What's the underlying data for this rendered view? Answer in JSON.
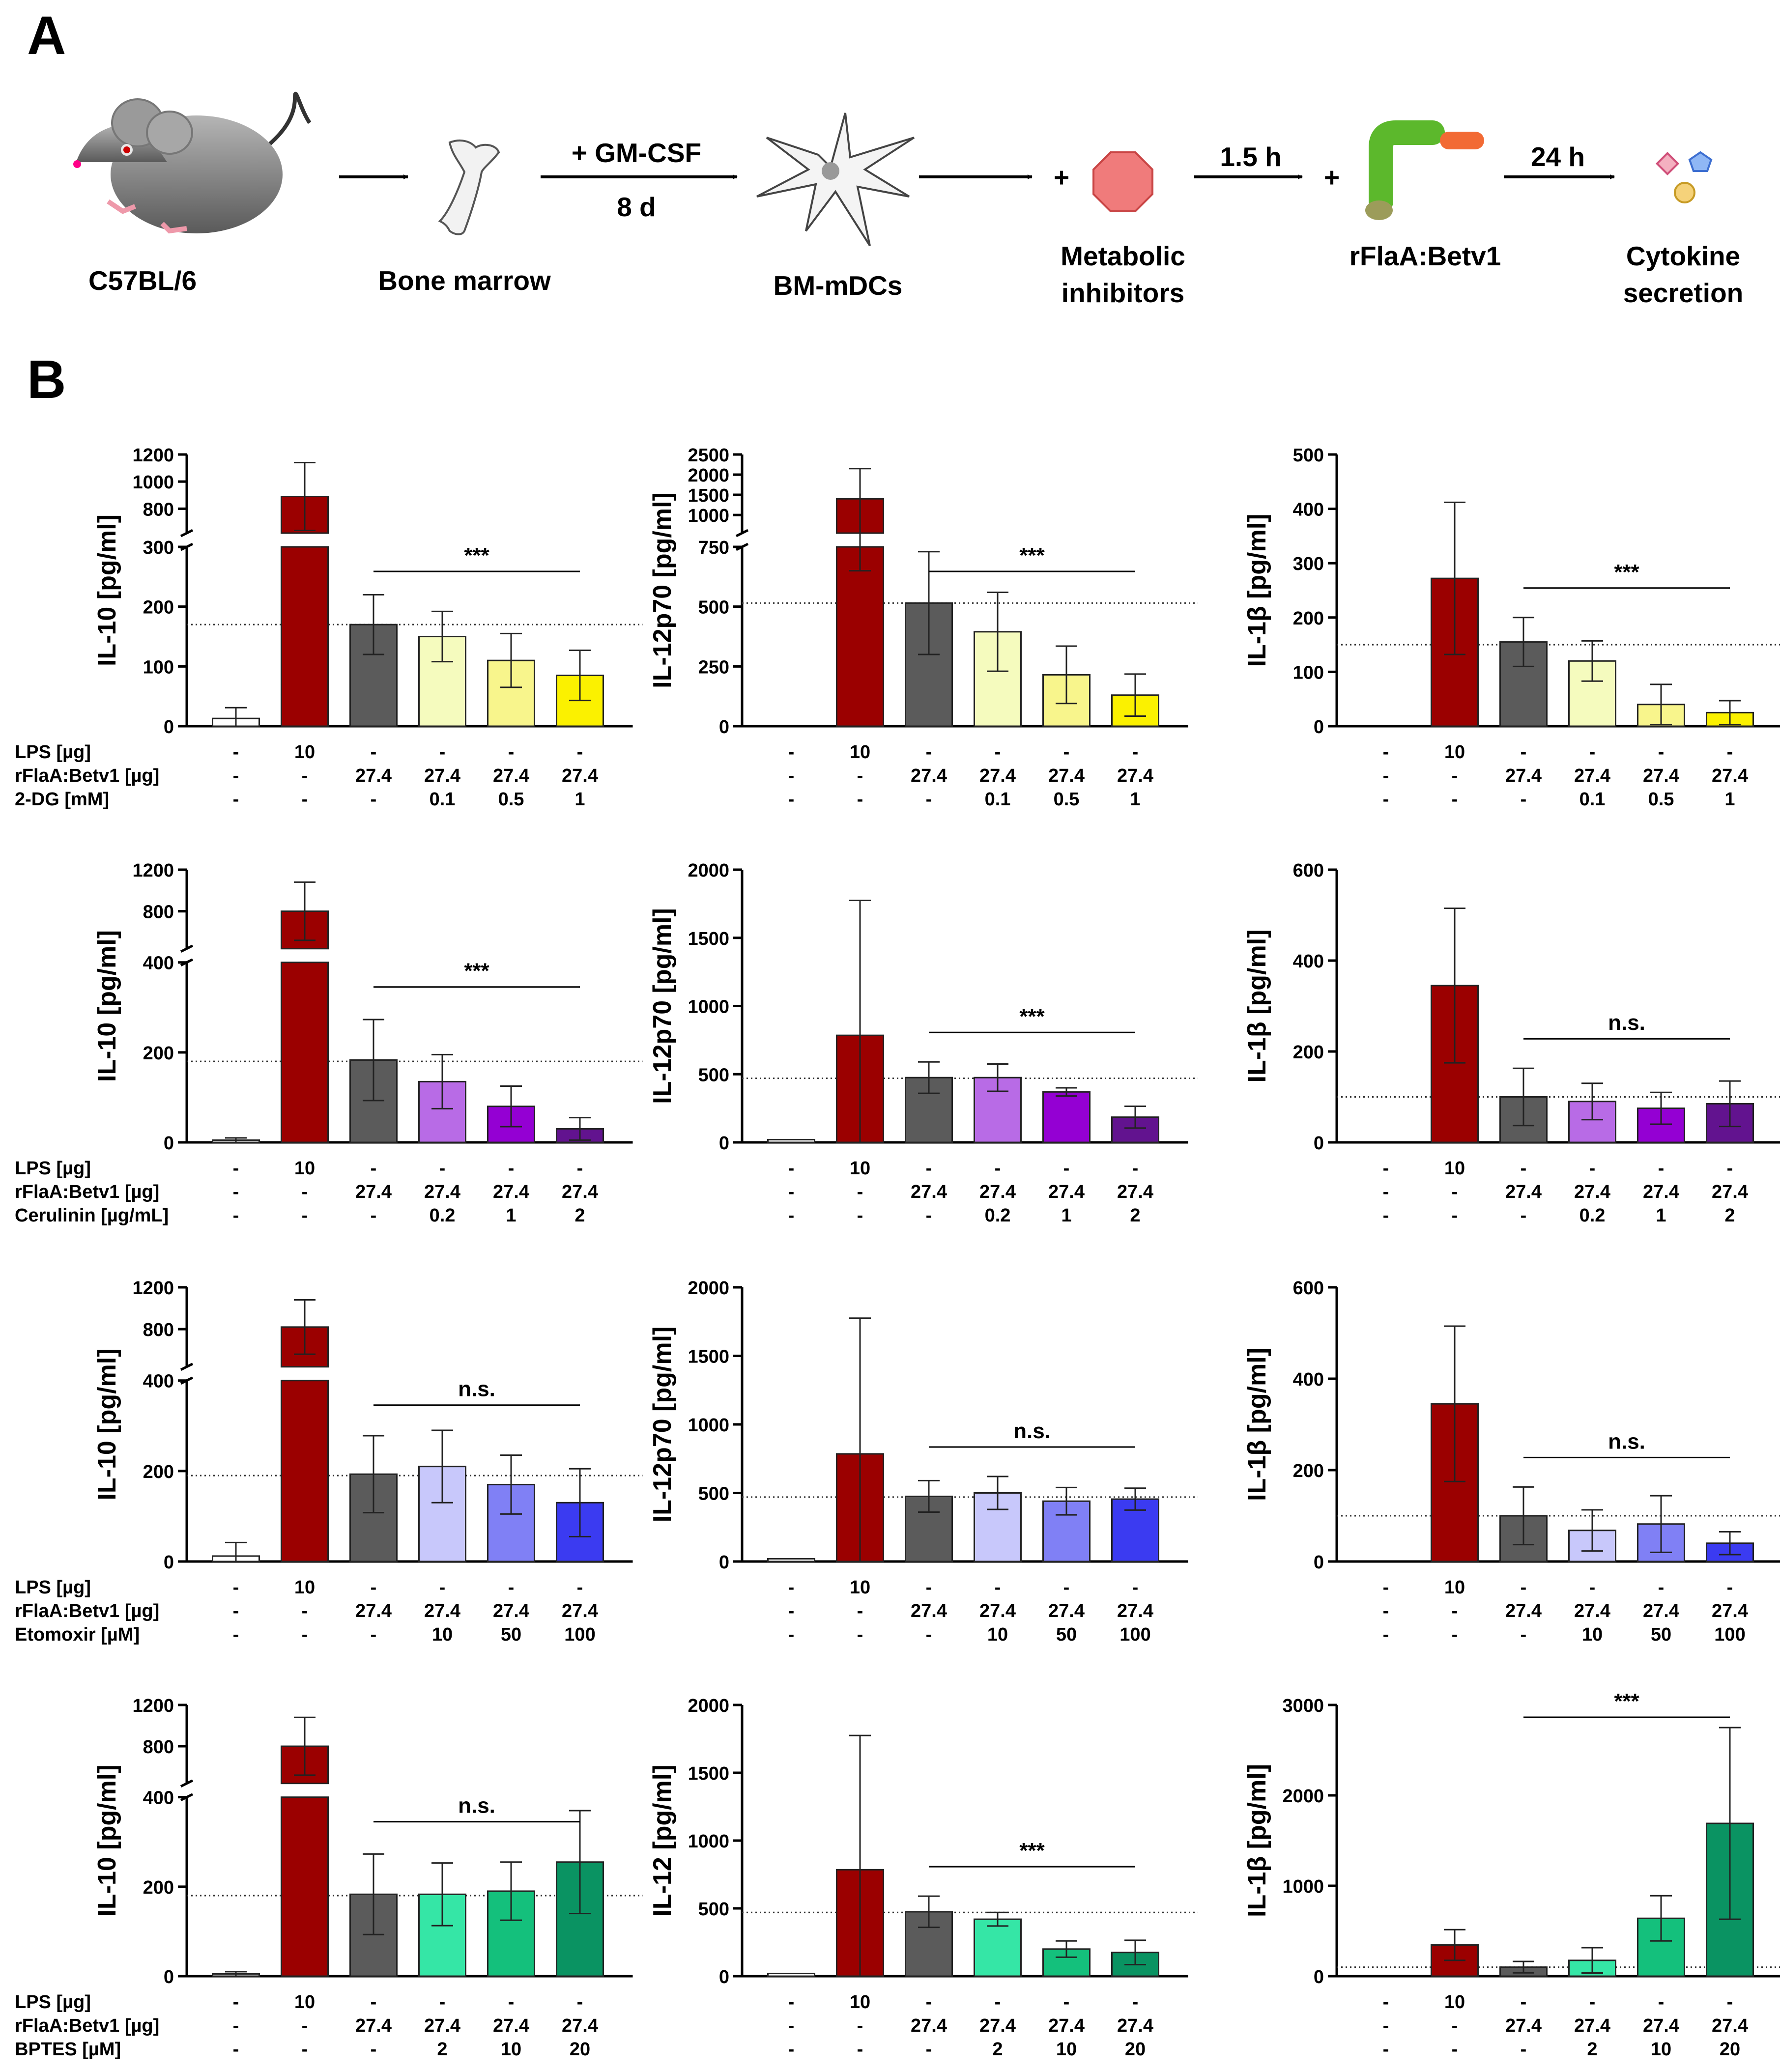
{
  "panel_labels": {
    "a": "A",
    "b": "B"
  },
  "workflow": {
    "mouse": "C57BL/6",
    "bone": "Bone marrow",
    "gmcsf": "+ GM-CSF",
    "days": "8 d",
    "cells": "BM-mDCs",
    "plus1": "+",
    "inhibitor_line1": "Metabolic",
    "inhibitor_line2": "inhibitors",
    "time1": "1.5 h",
    "plus2": "+",
    "protein": "rFlaA:Betv1",
    "time2": "24 h",
    "cytokine_line1": "Cytokine",
    "cytokine_line2": "secretion"
  },
  "colors": {
    "mouse_body": "#8e8e8e",
    "blank": "#ffffff",
    "lps": "#9b0000",
    "control": "#5b5b5b",
    "dg_1": "#f5fbbe",
    "dg_2": "#f8f58c",
    "dg_3": "#fbf100",
    "cer_1": "#b86be6",
    "cer_2": "#9400d3",
    "cer_3": "#62138f",
    "eto_1": "#c8c8fb",
    "eto_2": "#8080f5",
    "eto_3": "#3b3bf1",
    "bpt_1": "#35e6a6",
    "bpt_2": "#14c07c",
    "bpt_3": "#0a9362",
    "inhibitor": "#f07b7b",
    "flagellin": "#5cb82c",
    "betv1": "#f26a34"
  },
  "chart_data": [
    {
      "type": "bar",
      "row": 0,
      "ylabel": "IL-10 [pg/ml]",
      "significance": "***",
      "baseline": 170,
      "values": [
        13,
        890,
        170,
        150,
        110,
        85
      ],
      "errors": [
        18,
        250,
        50,
        42,
        45,
        42
      ],
      "axis": {
        "breaks": true,
        "lower_ticks": [
          0,
          100,
          200,
          300
        ],
        "upper_ticks": [
          800,
          1000,
          1200
        ]
      },
      "conditions": [
        {
          "label": "LPS [µg]",
          "values": [
            "-",
            "10",
            "-",
            "-",
            "-",
            "-"
          ]
        },
        {
          "label": "rFlaA:Betv1 [µg]",
          "values": [
            "-",
            "-",
            "27.4",
            "27.4",
            "27.4",
            "27.4"
          ]
        },
        {
          "label": "2-DG [mM]",
          "values": [
            "-",
            "-",
            "-",
            "0.1",
            "0.5",
            "1"
          ]
        }
      ]
    },
    {
      "type": "bar",
      "row": 0,
      "ylabel": "IL-12p70 [pg/ml]",
      "significance": "***",
      "baseline": 515,
      "values": [
        0,
        1400,
        515,
        395,
        215,
        130
      ],
      "errors": [
        0,
        750,
        215,
        165,
        120,
        88
      ],
      "axis": {
        "breaks": true,
        "lower_ticks": [
          0,
          250,
          500,
          750
        ],
        "upper_ticks": [
          1000,
          1500,
          2000,
          2500
        ]
      },
      "conditions": [
        {
          "label": "",
          "values": [
            "-",
            "10",
            "-",
            "-",
            "-",
            "-"
          ]
        },
        {
          "label": "",
          "values": [
            "-",
            "-",
            "27.4",
            "27.4",
            "27.4",
            "27.4"
          ]
        },
        {
          "label": "",
          "values": [
            "-",
            "-",
            "-",
            "0.1",
            "0.5",
            "1"
          ]
        }
      ]
    },
    {
      "type": "bar",
      "row": 0,
      "ylabel": "IL-1β [pg/ml]",
      "significance": "***",
      "baseline": 150,
      "values": [
        0,
        272,
        155,
        120,
        40,
        25
      ],
      "errors": [
        0,
        140,
        45,
        37,
        37,
        22
      ],
      "axis": {
        "breaks": false,
        "ticks": [
          0,
          100,
          200,
          300,
          400,
          500
        ]
      },
      "conditions": [
        {
          "label": "",
          "values": [
            "-",
            "10",
            "-",
            "-",
            "-",
            "-"
          ]
        },
        {
          "label": "",
          "values": [
            "-",
            "-",
            "27.4",
            "27.4",
            "27.4",
            "27.4"
          ]
        },
        {
          "label": "",
          "values": [
            "-",
            "-",
            "-",
            "0.1",
            "0.5",
            "1"
          ]
        }
      ]
    },
    {
      "type": "bar",
      "row": 1,
      "ylabel": "IL-10 [pg/ml]",
      "significance": "***",
      "baseline": 180,
      "values": [
        5,
        800,
        183,
        135,
        80,
        30
      ],
      "errors": [
        5,
        280,
        90,
        60,
        45,
        25
      ],
      "axis": {
        "breaks": true,
        "lower_ticks": [
          0,
          200,
          400
        ],
        "upper_ticks": [
          800,
          1200
        ]
      },
      "conditions": [
        {
          "label": "LPS [µg]",
          "values": [
            "-",
            "10",
            "-",
            "-",
            "-",
            "-"
          ]
        },
        {
          "label": "rFlaA:Betv1 [µg]",
          "values": [
            "-",
            "-",
            "27.4",
            "27.4",
            "27.4",
            "27.4"
          ]
        },
        {
          "label": "Cerulinin [µg/mL]",
          "values": [
            "-",
            "-",
            "-",
            "0.2",
            "1",
            "2"
          ]
        }
      ]
    },
    {
      "type": "bar",
      "row": 1,
      "ylabel": "IL-12p70 [pg/ml]",
      "significance": "***",
      "baseline": 470,
      "values": [
        20,
        785,
        475,
        475,
        370,
        185
      ],
      "errors": [
        0,
        990,
        115,
        100,
        30,
        80
      ],
      "axis": {
        "breaks": false,
        "ticks": [
          0,
          500,
          1000,
          1500,
          2000
        ]
      },
      "conditions": [
        {
          "label": "",
          "values": [
            "-",
            "10",
            "-",
            "-",
            "-",
            "-"
          ]
        },
        {
          "label": "",
          "values": [
            "-",
            "-",
            "27.4",
            "27.4",
            "27.4",
            "27.4"
          ]
        },
        {
          "label": "",
          "values": [
            "-",
            "-",
            "-",
            "0.2",
            "1",
            "2"
          ]
        }
      ]
    },
    {
      "type": "bar",
      "row": 1,
      "ylabel": "IL-1β [pg/ml]",
      "significance": "n.s.",
      "baseline": 100,
      "values": [
        0,
        345,
        100,
        90,
        75,
        85
      ],
      "errors": [
        0,
        170,
        63,
        40,
        35,
        50
      ],
      "axis": {
        "breaks": false,
        "ticks": [
          0,
          200,
          400,
          600
        ]
      },
      "conditions": [
        {
          "label": "",
          "values": [
            "-",
            "10",
            "-",
            "-",
            "-",
            "-"
          ]
        },
        {
          "label": "",
          "values": [
            "-",
            "-",
            "27.4",
            "27.4",
            "27.4",
            "27.4"
          ]
        },
        {
          "label": "",
          "values": [
            "-",
            "-",
            "-",
            "0.2",
            "1",
            "2"
          ]
        }
      ]
    },
    {
      "type": "bar",
      "row": 2,
      "ylabel": "IL-10 [pg/ml]",
      "significance": "n.s.",
      "baseline": 190,
      "values": [
        12,
        820,
        193,
        210,
        170,
        130
      ],
      "errors": [
        30,
        260,
        85,
        80,
        65,
        75
      ],
      "axis": {
        "breaks": true,
        "lower_ticks": [
          0,
          200,
          400
        ],
        "upper_ticks": [
          800,
          1200
        ]
      },
      "conditions": [
        {
          "label": "LPS [µg]",
          "values": [
            "-",
            "10",
            "-",
            "-",
            "-",
            "-"
          ]
        },
        {
          "label": "rFlaA:Betv1 [µg]",
          "values": [
            "-",
            "-",
            "27.4",
            "27.4",
            "27.4",
            "27.4"
          ]
        },
        {
          "label": "Etomoxir [µM]",
          "values": [
            "-",
            "-",
            "-",
            "10",
            "50",
            "100"
          ]
        }
      ]
    },
    {
      "type": "bar",
      "row": 2,
      "ylabel": "IL-12p70 [pg/ml]",
      "significance": "n.s.",
      "baseline": 470,
      "values": [
        20,
        785,
        475,
        500,
        440,
        455
      ],
      "errors": [
        0,
        990,
        115,
        120,
        100,
        80
      ],
      "axis": {
        "breaks": false,
        "ticks": [
          0,
          500,
          1000,
          1500,
          2000
        ]
      },
      "conditions": [
        {
          "label": "",
          "values": [
            "-",
            "10",
            "-",
            "-",
            "-",
            "-"
          ]
        },
        {
          "label": "",
          "values": [
            "-",
            "-",
            "27.4",
            "27.4",
            "27.4",
            "27.4"
          ]
        },
        {
          "label": "",
          "values": [
            "-",
            "-",
            "-",
            "10",
            "50",
            "100"
          ]
        }
      ]
    },
    {
      "type": "bar",
      "row": 2,
      "ylabel": "IL-1β [pg/ml]",
      "significance": "n.s.",
      "baseline": 100,
      "values": [
        0,
        345,
        100,
        68,
        82,
        40
      ],
      "errors": [
        0,
        170,
        63,
        45,
        62,
        25
      ],
      "axis": {
        "breaks": false,
        "ticks": [
          0,
          200,
          400,
          600
        ]
      },
      "conditions": [
        {
          "label": "",
          "values": [
            "-",
            "10",
            "-",
            "-",
            "-",
            "-"
          ]
        },
        {
          "label": "",
          "values": [
            "-",
            "-",
            "27.4",
            "27.4",
            "27.4",
            "27.4"
          ]
        },
        {
          "label": "",
          "values": [
            "-",
            "-",
            "-",
            "10",
            "50",
            "100"
          ]
        }
      ]
    },
    {
      "type": "bar",
      "row": 3,
      "ylabel": "IL-10 [pg/ml]",
      "significance": "n.s.",
      "baseline": 180,
      "values": [
        5,
        800,
        183,
        183,
        190,
        255
      ],
      "errors": [
        5,
        280,
        90,
        70,
        65,
        115
      ],
      "axis": {
        "breaks": true,
        "lower_ticks": [
          0,
          200,
          400
        ],
        "upper_ticks": [
          800,
          1200
        ]
      },
      "conditions": [
        {
          "label": "LPS [µg]",
          "values": [
            "-",
            "10",
            "-",
            "-",
            "-",
            "-"
          ]
        },
        {
          "label": "rFlaA:Betv1 [µg]",
          "values": [
            "-",
            "-",
            "27.4",
            "27.4",
            "27.4",
            "27.4"
          ]
        },
        {
          "label": "BPTES [µM]",
          "values": [
            "-",
            "-",
            "-",
            "2",
            "10",
            "20"
          ]
        }
      ]
    },
    {
      "type": "bar",
      "row": 3,
      "ylabel": "IL-12 [pg/ml]",
      "significance": "***",
      "baseline": 470,
      "values": [
        20,
        785,
        475,
        420,
        200,
        175
      ],
      "errors": [
        0,
        990,
        115,
        50,
        60,
        90
      ],
      "axis": {
        "breaks": false,
        "ticks": [
          0,
          500,
          1000,
          1500,
          2000
        ]
      },
      "conditions": [
        {
          "label": "",
          "values": [
            "-",
            "10",
            "-",
            "-",
            "-",
            "-"
          ]
        },
        {
          "label": "",
          "values": [
            "-",
            "-",
            "27.4",
            "27.4",
            "27.4",
            "27.4"
          ]
        },
        {
          "label": "",
          "values": [
            "-",
            "-",
            "-",
            "2",
            "10",
            "20"
          ]
        }
      ]
    },
    {
      "type": "bar",
      "row": 3,
      "ylabel": "IL-1β [pg/ml]",
      "significance": "***",
      "baseline": 100,
      "values": [
        0,
        345,
        100,
        175,
        640,
        1690
      ],
      "errors": [
        0,
        170,
        63,
        140,
        250,
        1060
      ],
      "axis": {
        "breaks": false,
        "ticks": [
          0,
          1000,
          2000,
          3000
        ]
      },
      "conditions": [
        {
          "label": "",
          "values": [
            "-",
            "10",
            "-",
            "-",
            "-",
            "-"
          ]
        },
        {
          "label": "",
          "values": [
            "-",
            "-",
            "27.4",
            "27.4",
            "27.4",
            "27.4"
          ]
        },
        {
          "label": "",
          "values": [
            "-",
            "-",
            "-",
            "2",
            "10",
            "20"
          ]
        }
      ]
    }
  ]
}
